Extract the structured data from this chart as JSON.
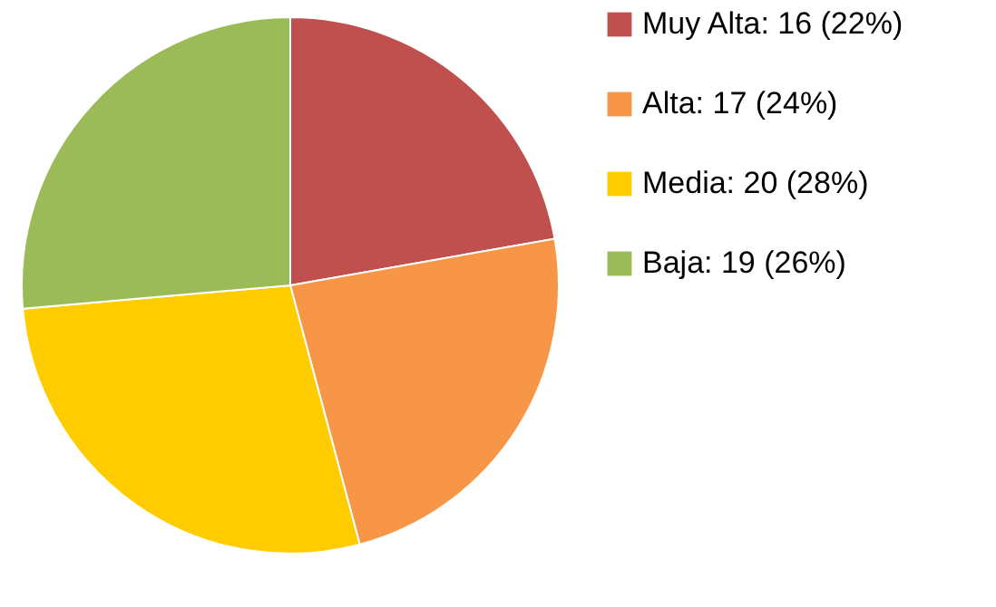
{
  "chart_data": {
    "type": "pie",
    "categories": [
      "Muy Alta: 16 (22%)",
      "Alta: 17 (24%)",
      "Media: 20 (28%)",
      "Baja: 19 (26%)"
    ],
    "values": [
      16,
      17,
      20,
      19
    ],
    "colors": [
      "#c0504d",
      "#f79646",
      "#ffcc00",
      "#9bbb59"
    ],
    "legend": "right"
  }
}
